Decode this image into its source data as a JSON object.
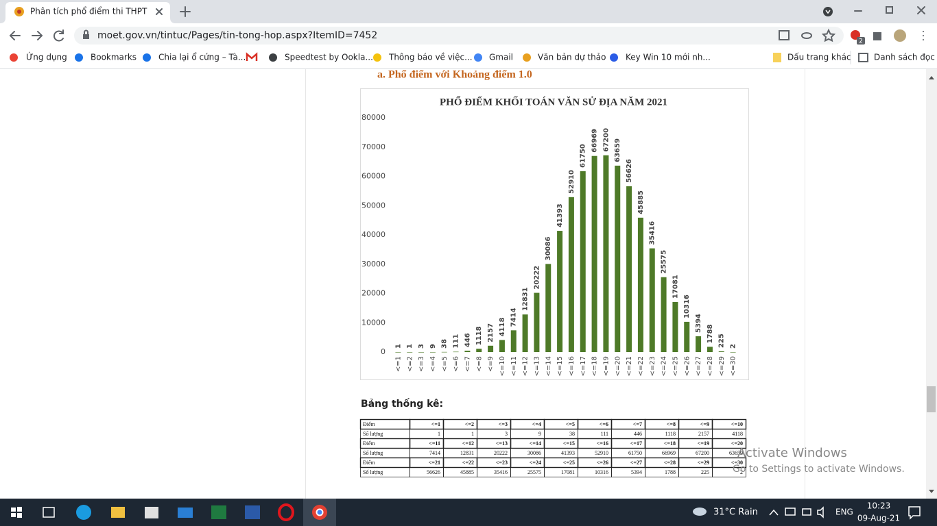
{
  "browser": {
    "tab_title": "Phân tích phổ điểm thi THPT năm",
    "url": "moet.gov.vn/tintuc/Pages/tin-tong-hop.aspx?ItemID=7452",
    "extension_badge": "2",
    "bookmarks": [
      "Ứng dụng",
      "Bookmarks",
      "Chia lại ổ cứng – Tà...",
      "Speedtest by Ookla...",
      "Thông báo về việc...",
      "Gmail",
      "Văn bản dự thảo",
      "Key Win 10 mới nh..."
    ],
    "other_bookmarks": "Dấu trang khác",
    "reading_list": "Danh sách đọc"
  },
  "page": {
    "heading": "a. Phổ điểm với Khoảng điểm 1.0",
    "table_title": "Bảng thống kê:",
    "table": {
      "rows": [
        [
          "Điểm",
          "<=1",
          "<=2",
          "<=3",
          "<=4",
          "<=5",
          "<=6",
          "<=7",
          "<=8",
          "<=9",
          "<=10"
        ],
        [
          "Số lượng",
          1,
          1,
          3,
          9,
          38,
          111,
          446,
          1118,
          2157,
          4118
        ],
        [
          "Điểm",
          "<=11",
          "<=12",
          "<=13",
          "<=14",
          "<=15",
          "<=16",
          "<=17",
          "<=18",
          "<=19",
          "<=20"
        ],
        [
          "Số lượng",
          7414,
          12831,
          20222,
          30086,
          41393,
          52910,
          61750,
          66969,
          67200,
          63659
        ],
        [
          "Điểm",
          "<=21",
          "<=22",
          "<=23",
          "<=24",
          "<=25",
          "<=26",
          "<=27",
          "<=28",
          "<=29",
          "<=30"
        ],
        [
          "Số lượng",
          56626,
          45885,
          35416,
          25575,
          17081,
          10316,
          5394,
          1788,
          225,
          2
        ]
      ]
    }
  },
  "chart_data": {
    "type": "bar",
    "title": "PHỔ ĐIỂM KHỐI TOÁN VĂN SỬ ĐỊA NĂM 2021",
    "categories": [
      "<=1",
      "<=2",
      "<=3",
      "<=4",
      "<=5",
      "<=6",
      "<=7",
      "<=8",
      "<=9",
      "<=10",
      "<=11",
      "<=12",
      "<=13",
      "<=14",
      "<=15",
      "<=16",
      "<=17",
      "<=18",
      "<=19",
      "<=20",
      "<=21",
      "<=22",
      "<=23",
      "<=24",
      "<=25",
      "<=26",
      "<=27",
      "<=28",
      "<=29",
      "<=30"
    ],
    "values": [
      1,
      1,
      3,
      9,
      38,
      111,
      446,
      1118,
      2157,
      4118,
      7414,
      12831,
      20222,
      30086,
      41393,
      52910,
      61750,
      66969,
      67200,
      63659,
      56626,
      45885,
      35416,
      25575,
      17081,
      10316,
      5394,
      1788,
      225,
      2
    ],
    "color": "#4e7a28",
    "ylim": [
      0,
      80000
    ],
    "yticks": [
      0,
      10000,
      20000,
      30000,
      40000,
      50000,
      60000,
      70000,
      80000
    ],
    "grid": false
  },
  "watermark": {
    "title": "Activate Windows",
    "subtitle": "Go to Settings to activate Windows."
  },
  "taskbar": {
    "weather": "31°C Rain",
    "language": "ENG",
    "time": "10:23",
    "date": "09-Aug-21"
  }
}
